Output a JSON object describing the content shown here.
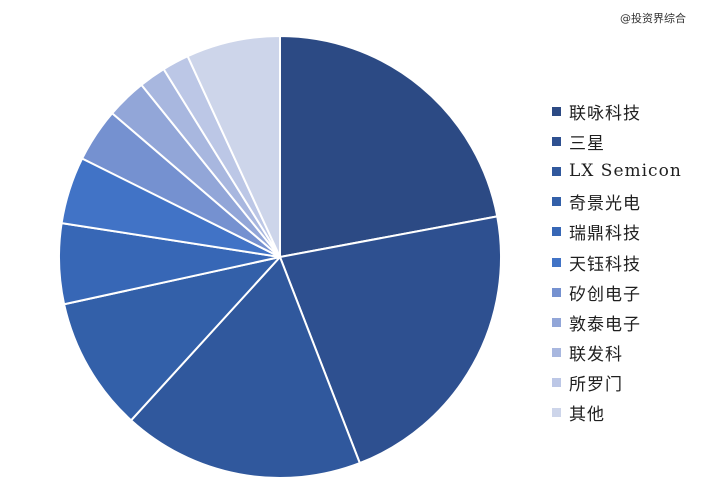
{
  "watermark": "@投资界综合",
  "chart_data": {
    "type": "pie",
    "title": "",
    "legend_position": "right",
    "start_angle_deg": 0,
    "direction": "clockwise",
    "slices": [
      {
        "label": "联咏科技",
        "value": 22.5,
        "color": "#2c4a84"
      },
      {
        "label": "三星",
        "value": 22.5,
        "color": "#2e5090"
      },
      {
        "label": "LX Semicon",
        "value": 18.0,
        "color": "#30589d"
      },
      {
        "label": "奇景光电",
        "value": 10.0,
        "color": "#3360a9"
      },
      {
        "label": "瑞鼎科技",
        "value": 6.0,
        "color": "#3767b6"
      },
      {
        "label": "天钰科技",
        "value": 5.0,
        "color": "#4173c6"
      },
      {
        "label": "矽创电子",
        "value": 4.0,
        "color": "#7591d0"
      },
      {
        "label": "敦泰电子",
        "value": 3.0,
        "color": "#92a6d8"
      },
      {
        "label": "联发科",
        "value": 2.0,
        "color": "#a8b7df"
      },
      {
        "label": "所罗门",
        "value": 2.0,
        "color": "#bcc7e6"
      },
      {
        "label": "其他",
        "value": 7.0,
        "color": "#cdd5ea"
      }
    ]
  }
}
